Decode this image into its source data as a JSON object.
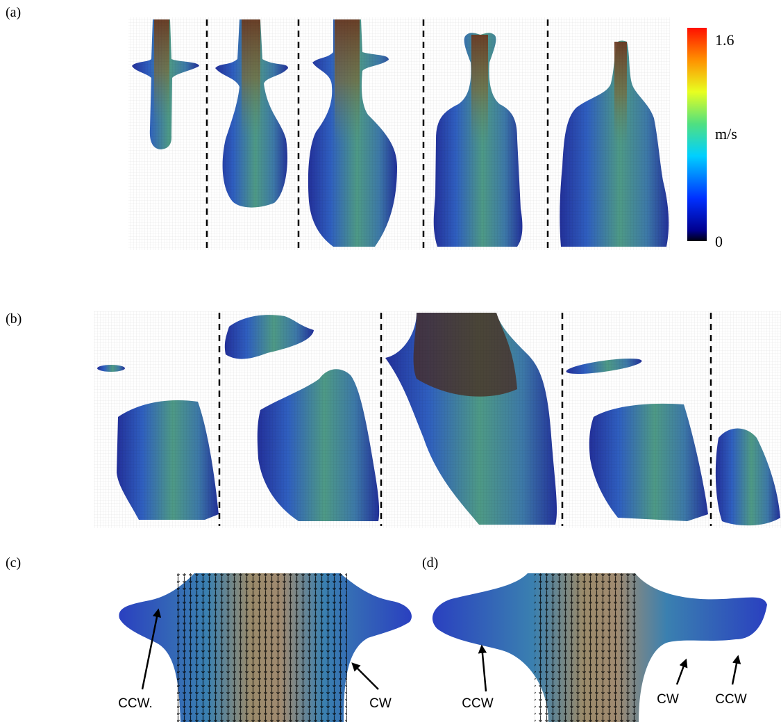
{
  "panels": [
    {
      "label": "(a)"
    },
    {
      "label": "(b)"
    },
    {
      "label": "(c)",
      "annotations": [
        "CCW.",
        "CW"
      ]
    },
    {
      "label": "(d)",
      "annotations": [
        "CCW",
        "CW",
        "CCW"
      ]
    }
  ],
  "colorbar": {
    "max": 1.6,
    "unit": "m/s",
    "min": 0
  }
}
